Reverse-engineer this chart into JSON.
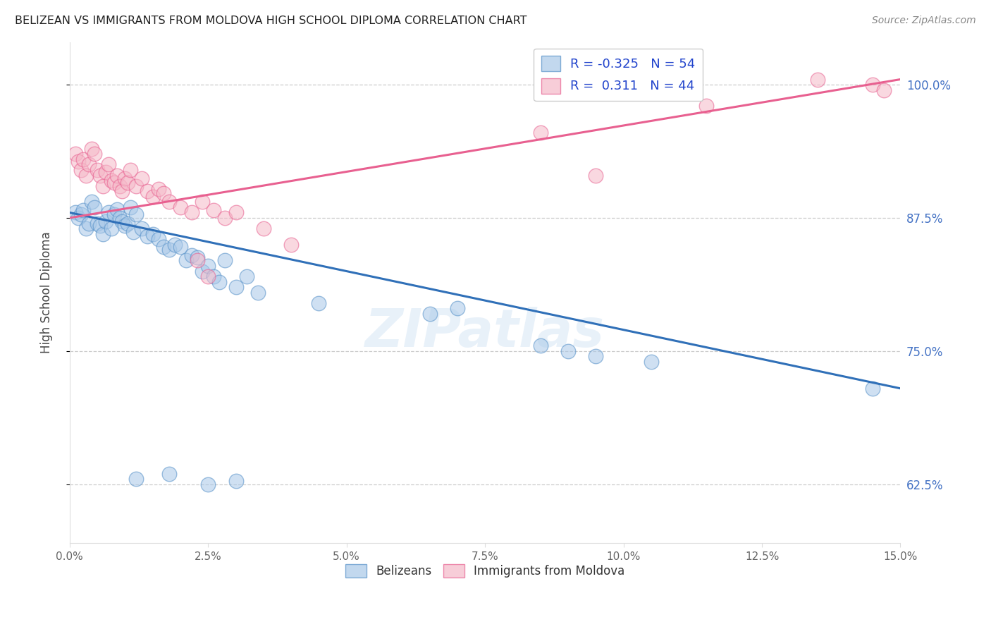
{
  "title": "BELIZEAN VS IMMIGRANTS FROM MOLDOVA HIGH SCHOOL DIPLOMA CORRELATION CHART",
  "source": "Source: ZipAtlas.com",
  "ylabel": "High School Diploma",
  "legend_blue_r": "R = -0.325",
  "legend_blue_n": "N = 54",
  "legend_pink_r": "R =  0.311",
  "legend_pink_n": "N = 44",
  "legend_label_blue": "Belizeans",
  "legend_label_pink": "Immigrants from Moldova",
  "xlim": [
    0.0,
    15.0
  ],
  "ylim": [
    57.0,
    104.0
  ],
  "yticks": [
    62.5,
    75.0,
    87.5,
    100.0
  ],
  "xticks": [
    0.0,
    2.5,
    5.0,
    7.5,
    10.0,
    12.5,
    15.0
  ],
  "blue_scatter_color": "#a8c8e8",
  "blue_edge_color": "#5590c8",
  "pink_scatter_color": "#f5b8c8",
  "pink_edge_color": "#e86090",
  "blue_line_color": "#3070b8",
  "pink_line_color": "#e86090",
  "watermark": "ZIPatlas",
  "blue_line_x0": 0.0,
  "blue_line_y0": 88.0,
  "blue_line_x1": 15.0,
  "blue_line_y1": 71.5,
  "pink_line_x0": 0.0,
  "pink_line_y0": 87.5,
  "pink_line_x1": 15.0,
  "pink_line_y1": 100.5,
  "blue_points_x": [
    0.1,
    0.15,
    0.2,
    0.25,
    0.3,
    0.35,
    0.4,
    0.45,
    0.5,
    0.55,
    0.6,
    0.65,
    0.7,
    0.75,
    0.8,
    0.85,
    0.9,
    0.95,
    1.0,
    1.05,
    1.1,
    1.15,
    1.2,
    1.3,
    1.4,
    1.5,
    1.6,
    1.7,
    1.8,
    1.9,
    2.0,
    2.1,
    2.2,
    2.3,
    2.4,
    2.5,
    2.6,
    2.7,
    2.8,
    3.0,
    3.2,
    3.4,
    4.5,
    6.5,
    7.0,
    1.2,
    1.8,
    2.5,
    3.0,
    8.5,
    9.0,
    9.5,
    10.5,
    14.5
  ],
  "blue_points_y": [
    88.0,
    87.5,
    87.8,
    88.2,
    86.5,
    87.0,
    89.0,
    88.5,
    87.0,
    86.8,
    86.0,
    87.2,
    88.0,
    86.5,
    87.8,
    88.3,
    87.5,
    87.2,
    86.8,
    87.0,
    88.5,
    86.2,
    87.8,
    86.5,
    85.8,
    86.0,
    85.5,
    84.8,
    84.5,
    85.0,
    84.8,
    83.5,
    84.0,
    83.8,
    82.5,
    83.0,
    82.0,
    81.5,
    83.5,
    81.0,
    82.0,
    80.5,
    79.5,
    78.5,
    79.0,
    63.0,
    63.5,
    62.5,
    62.8,
    75.5,
    75.0,
    74.5,
    74.0,
    71.5
  ],
  "pink_points_x": [
    0.1,
    0.15,
    0.2,
    0.25,
    0.3,
    0.35,
    0.4,
    0.45,
    0.5,
    0.55,
    0.6,
    0.65,
    0.7,
    0.75,
    0.8,
    0.85,
    0.9,
    0.95,
    1.0,
    1.05,
    1.1,
    1.2,
    1.3,
    1.4,
    1.5,
    1.6,
    1.7,
    1.8,
    2.0,
    2.2,
    2.4,
    2.6,
    2.8,
    3.0,
    3.5,
    4.0,
    2.3,
    2.5,
    8.5,
    9.5,
    11.5,
    13.5,
    14.5,
    14.7
  ],
  "pink_points_y": [
    93.5,
    92.8,
    92.0,
    93.0,
    91.5,
    92.5,
    94.0,
    93.5,
    92.0,
    91.5,
    90.5,
    91.8,
    92.5,
    91.0,
    90.8,
    91.5,
    90.5,
    90.0,
    91.2,
    90.8,
    92.0,
    90.5,
    91.2,
    90.0,
    89.5,
    90.2,
    89.8,
    89.0,
    88.5,
    88.0,
    89.0,
    88.2,
    87.5,
    88.0,
    86.5,
    85.0,
    83.5,
    82.0,
    95.5,
    91.5,
    98.0,
    100.5,
    100.0,
    99.5
  ]
}
